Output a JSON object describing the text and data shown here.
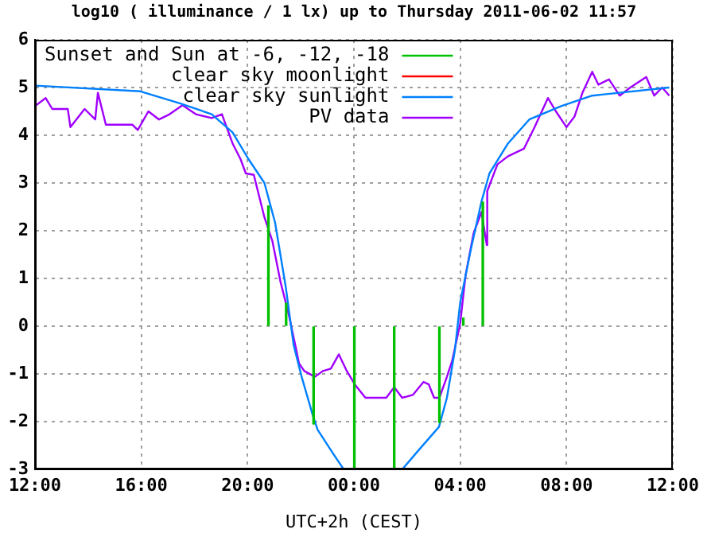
{
  "chart_data": {
    "type": "line",
    "title": "log10 ( illuminance / 1 lx) up to Thursday 2011-06-02 11:57",
    "xlabel": "UTC+2h (CEST)",
    "xlim": [
      "2011-06-01T12:00",
      "2011-06-02T12:00"
    ],
    "xticks": [
      {
        "value": "2011-06-01T12:00",
        "label": "12:00"
      },
      {
        "value": "2011-06-01T16:00",
        "label": "16:00"
      },
      {
        "value": "2011-06-01T20:00",
        "label": "20:00"
      },
      {
        "value": "2011-06-02T00:00",
        "label": "00:00"
      },
      {
        "value": "2011-06-02T04:00",
        "label": "04:00"
      },
      {
        "value": "2011-06-02T08:00",
        "label": "08:00"
      },
      {
        "value": "2011-06-02T12:00",
        "label": "12:00"
      }
    ],
    "ylim": [
      -3,
      6
    ],
    "yticks": [
      -3,
      -2,
      -1,
      0,
      1,
      2,
      3,
      4,
      5,
      6
    ],
    "grid": true,
    "legend": "top left",
    "marker": "none",
    "line_style": "solid",
    "series": [
      {
        "name": "Sunset and Sun at -6, -12, -18",
        "color": "#00c000",
        "type": "bar",
        "x": [
          "2011-06-01T20:47",
          "2011-06-01T21:27",
          "2011-06-01T22:29",
          "2011-06-02T00:01",
          "2011-06-02T01:31",
          "2011-06-02T03:13",
          "2011-06-02T04:07",
          "2011-06-02T04:51"
        ],
        "values": [
          2.52,
          0.48,
          -2.05,
          -3,
          -3,
          -2.02,
          0.17,
          2.6
        ]
      },
      {
        "name": "clear sky moonlight",
        "color": "#ff0000"
      },
      {
        "name": "clear sky sunlight",
        "color": "#0080ff",
        "x": [
          "2011-06-01T12:00",
          "2011-06-01T15:58",
          "2011-06-01T17:27",
          "2011-06-01T18:39",
          "2011-06-01T19:26",
          "2011-06-01T20:02",
          "2011-06-01T20:38",
          "2011-06-01T21:02",
          "2011-06-01T21:26",
          "2011-06-01T21:44",
          "2011-06-01T22:02",
          "2011-06-01T22:26",
          "2011-06-01T22:38",
          "2011-06-01T23:13",
          "2011-06-01T23:37",
          "2011-06-02T00:42",
          "2011-06-02T01:49",
          "2011-06-02T02:25",
          "2011-06-02T03:12",
          "2011-06-02T03:30",
          "2011-06-02T03:48",
          "2011-06-02T04:00",
          "2011-06-02T04:24",
          "2011-06-02T04:48",
          "2011-06-02T05:06",
          "2011-06-02T05:48",
          "2011-06-02T06:36",
          "2011-06-02T07:48",
          "2011-06-02T08:58",
          "2011-06-02T11:52"
        ],
        "values": [
          5.04,
          4.92,
          4.67,
          4.44,
          4.06,
          3.5,
          3.0,
          2.17,
          0.83,
          -0.4,
          -1.06,
          -1.83,
          -2.17,
          -2.67,
          -3.0,
          null,
          -3.0,
          -2.61,
          -2.11,
          -1.5,
          -0.5,
          0.5,
          1.61,
          2.61,
          3.2,
          3.83,
          4.33,
          4.61,
          4.83,
          5.0
        ]
      },
      {
        "name": "PV data",
        "color": "#a000ff",
        "x": [
          "2011-06-01T12:00",
          "2011-06-01T12:24",
          "2011-06-01T12:39",
          "2011-06-01T13:14",
          "2011-06-01T13:20",
          "2011-06-01T13:52",
          "2011-06-01T14:16",
          "2011-06-01T14:22",
          "2011-06-01T14:40",
          "2011-06-01T15:40",
          "2011-06-01T15:52",
          "2011-06-01T16:16",
          "2011-06-01T16:40",
          "2011-06-01T17:04",
          "2011-06-01T17:33",
          "2011-06-01T18:03",
          "2011-06-01T18:39",
          "2011-06-01T19:02",
          "2011-06-01T19:26",
          "2011-06-01T19:44",
          "2011-06-01T19:56",
          "2011-06-01T20:14",
          "2011-06-01T20:38",
          "2011-06-01T20:56",
          "2011-06-01T21:14",
          "2011-06-01T21:32",
          "2011-06-01T21:50",
          "2011-06-01T21:56",
          "2011-06-01T22:08",
          "2011-06-01T22:32",
          "2011-06-01T22:50",
          "2011-06-01T23:08",
          "2011-06-01T23:26",
          "2011-06-01T23:44",
          "2011-06-02T00:02",
          "2011-06-02T00:26",
          "2011-06-02T01:13",
          "2011-06-02T01:31",
          "2011-06-02T01:49",
          "2011-06-02T02:13",
          "2011-06-02T02:37",
          "2011-06-02T02:49",
          "2011-06-02T03:01",
          "2011-06-02T03:13",
          "2011-06-02T03:30",
          "2011-06-02T03:42",
          "2011-06-02T04:00",
          "2011-06-02T04:12",
          "2011-06-02T04:30",
          "2011-06-02T04:48",
          "2011-06-02T05:00",
          "2011-06-02T05:01",
          "2011-06-02T05:24",
          "2011-06-02T05:48",
          "2011-06-02T06:24",
          "2011-06-02T06:48",
          "2011-06-02T07:18",
          "2011-06-02T07:36",
          "2011-06-02T08:00",
          "2011-06-02T08:18",
          "2011-06-02T08:36",
          "2011-06-02T08:58",
          "2011-06-02T09:12",
          "2011-06-02T09:36",
          "2011-06-02T10:00",
          "2011-06-02T10:24",
          "2011-06-02T11:00",
          "2011-06-02T11:18",
          "2011-06-02T11:36",
          "2011-06-02T11:52"
        ],
        "values": [
          4.61,
          4.78,
          4.55,
          4.55,
          4.17,
          4.55,
          4.33,
          4.89,
          4.22,
          4.22,
          4.11,
          4.5,
          4.33,
          4.44,
          4.63,
          4.44,
          4.36,
          4.44,
          3.83,
          3.5,
          3.2,
          3.17,
          2.28,
          1.78,
          0.94,
          0.28,
          -0.5,
          -0.78,
          -0.94,
          -1.06,
          -0.94,
          -0.89,
          -0.59,
          -0.94,
          -1.22,
          -1.5,
          -1.5,
          -1.28,
          -1.5,
          -1.44,
          -1.17,
          -1.22,
          -1.5,
          -1.5,
          -1.06,
          -0.72,
          0.06,
          1.06,
          1.94,
          2.39,
          1.7,
          2.83,
          3.39,
          3.56,
          3.72,
          4.17,
          4.78,
          4.5,
          4.17,
          4.39,
          4.89,
          5.33,
          5.06,
          5.17,
          4.83,
          5.0,
          5.22,
          4.83,
          5.0,
          4.83
        ]
      }
    ]
  }
}
